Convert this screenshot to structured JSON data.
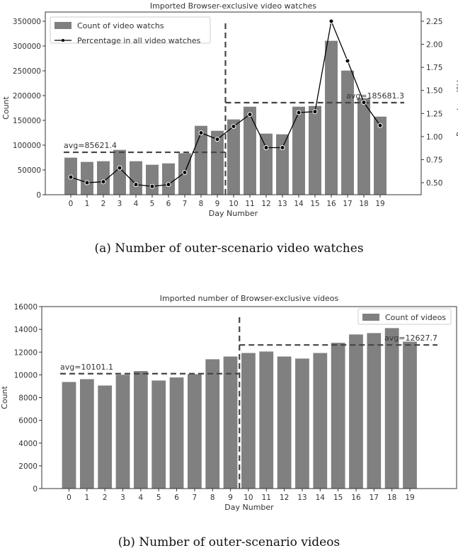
{
  "captions": {
    "a": "(a)  Number of outer-scenario video watches",
    "b": "(b)  Number of outer-scenario videos"
  },
  "chart_data": [
    {
      "type": "bar+line",
      "title": "Imported Browser-exclusive video watches",
      "xlabel": "Day Number",
      "ylabel": "Count",
      "y2label": "Percentage(%)",
      "categories": [
        "0",
        "1",
        "2",
        "3",
        "4",
        "5",
        "6",
        "7",
        "8",
        "9",
        "10",
        "11",
        "12",
        "13",
        "14",
        "15",
        "16",
        "17",
        "18",
        "19"
      ],
      "ylim": [
        0,
        350000
      ],
      "yticks": [
        0,
        50000,
        100000,
        150000,
        200000,
        250000,
        300000,
        350000
      ],
      "y2lim": [
        0.4,
        2.25
      ],
      "y2ticks": [
        "0.50",
        "0.75",
        "1.00",
        "1.25",
        "1.50",
        "1.75",
        "2.00",
        "2.25"
      ],
      "legend_position": "top-left",
      "series": [
        {
          "name": "Count of video watchs",
          "type": "bar",
          "color": "#808080",
          "values": [
            74800,
            66200,
            67600,
            90500,
            67600,
            60500,
            63300,
            83800,
            139000,
            129000,
            151900,
            177600,
            123300,
            121900,
            177600,
            179000,
            310500,
            250500,
            194800,
            157600
          ]
        },
        {
          "name": "Percentage in all video watches",
          "type": "line",
          "axis": "right",
          "color": "#000000",
          "values": [
            0.56,
            0.5,
            0.51,
            0.66,
            0.48,
            0.46,
            0.48,
            0.61,
            1.04,
            0.97,
            1.11,
            1.24,
            0.88,
            0.88,
            1.26,
            1.27,
            2.25,
            1.82,
            1.37,
            1.12
          ]
        }
      ],
      "split_after_day": 9,
      "averages": [
        {
          "label": "avg=85621.4",
          "value": 85621.4,
          "from": 0,
          "to": 9
        },
        {
          "label": "avg=185681.3",
          "value": 185681.3,
          "from": 10,
          "to": 19
        }
      ]
    },
    {
      "type": "bar",
      "title": "Imported number of Browser-exclusive videos",
      "xlabel": "Day Number",
      "ylabel": "Count",
      "categories": [
        "0",
        "1",
        "2",
        "3",
        "4",
        "5",
        "6",
        "7",
        "8",
        "9",
        "10",
        "11",
        "12",
        "13",
        "14",
        "15",
        "16",
        "17",
        "18",
        "19"
      ],
      "ylim": [
        0,
        16000
      ],
      "yticks": [
        0,
        2000,
        4000,
        6000,
        8000,
        10000,
        12000,
        14000,
        16000
      ],
      "legend_position": "top-right",
      "series": [
        {
          "name": "Count of videos",
          "type": "bar",
          "color": "#808080",
          "values": [
            9370,
            9620,
            9060,
            10010,
            10330,
            9500,
            9770,
            10060,
            11370,
            11610,
            11920,
            12050,
            11610,
            11430,
            11920,
            12820,
            13550,
            13670,
            14110,
            12920
          ]
        }
      ],
      "split_after_day": 9,
      "averages": [
        {
          "label": "avg=10101.1",
          "value": 10101.1,
          "from": 0,
          "to": 9
        },
        {
          "label": "avg=12627.7",
          "value": 12627.7,
          "from": 10,
          "to": 19
        }
      ]
    }
  ]
}
